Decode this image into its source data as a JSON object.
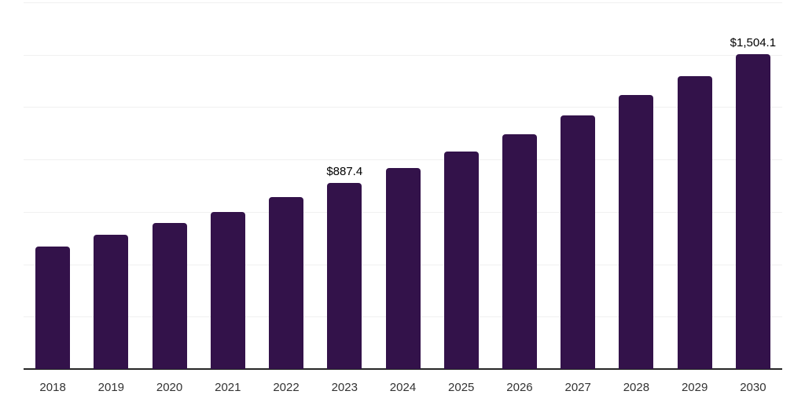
{
  "chart_data": {
    "type": "bar",
    "title": "",
    "xlabel": "",
    "ylabel": "",
    "categories": [
      "2018",
      "2019",
      "2020",
      "2021",
      "2022",
      "2023",
      "2024",
      "2025",
      "2026",
      "2027",
      "2028",
      "2029",
      "2030"
    ],
    "values": [
      585,
      641,
      697,
      750,
      819,
      887.4,
      961,
      1038,
      1119,
      1210,
      1306,
      1396,
      1504.1
    ],
    "data_labels": [
      {
        "index": 5,
        "text": "$887.4"
      },
      {
        "index": 12,
        "text": "$1,504.1"
      }
    ],
    "ylim": [
      0,
      1750
    ],
    "grid_step": 250,
    "grid": true,
    "legend": false,
    "y_tick_labels_visible": false,
    "bar_color": "#33124a",
    "grid_color": "#f0f0f0",
    "axis_line_color": "#262626",
    "tick_label_color": "#333333",
    "value_label_color": "#000000"
  }
}
